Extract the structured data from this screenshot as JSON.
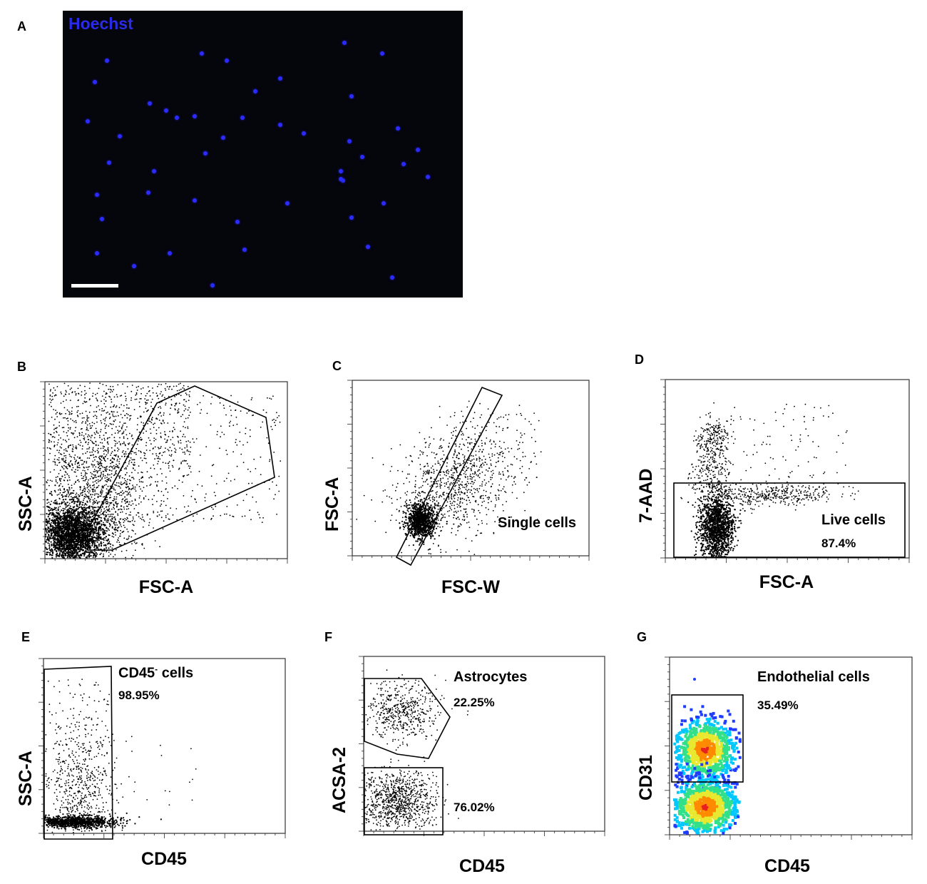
{
  "panel_letters": {
    "A": "A",
    "B": "B",
    "C": "C",
    "D": "D",
    "E": "E",
    "F": "F",
    "G": "G"
  },
  "microscopy": {
    "stain_label": "Hoechst",
    "nucleus_color": "#2b2bff",
    "background_color": "#05050c"
  },
  "chart_data": [
    {
      "panel": "B",
      "type": "scatter",
      "xlabel": "FSC-A",
      "ylabel": "SSC-A",
      "gate": {
        "label": "",
        "value": ""
      }
    },
    {
      "panel": "C",
      "type": "scatter",
      "xlabel": "FSC-W",
      "ylabel": "FSC-A",
      "gate": {
        "label": "Single cells",
        "value": ""
      }
    },
    {
      "panel": "D",
      "type": "scatter",
      "xlabel": "FSC-A",
      "ylabel": "7-AAD",
      "gate": {
        "label": "Live cells",
        "value": "87.4%",
        "percent": 87.4
      }
    },
    {
      "panel": "E",
      "type": "scatter",
      "xlabel": "CD45",
      "ylabel": "SSC-A",
      "gate": {
        "label": "CD45",
        "label_superscript": "-",
        "label_suffix": " cells",
        "value": "98.95%",
        "percent": 98.95
      }
    },
    {
      "panel": "F",
      "type": "scatter",
      "xlabel": "CD45",
      "ylabel": "ACSA-2",
      "gates": [
        {
          "label": "Astrocytes",
          "value": "22.25%",
          "percent": 22.25
        },
        {
          "label": "",
          "value": "76.02%",
          "percent": 76.02
        }
      ]
    },
    {
      "panel": "G",
      "type": "heatmap",
      "xlabel": "CD45",
      "ylabel": "CD31",
      "gate": {
        "label": "Endothelial cells",
        "value": "35.49%",
        "percent": 35.49
      },
      "density_colors": [
        "#1f3cff",
        "#00c8ff",
        "#33e08a",
        "#e8e830",
        "#ff8a00",
        "#e82020"
      ]
    }
  ]
}
